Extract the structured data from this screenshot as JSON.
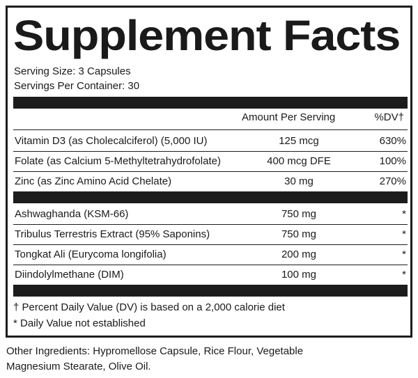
{
  "title": "Supplement Facts",
  "serving_size": "Serving Size: 3 Capsules",
  "servings_per_container": "Servings Per Container: 30",
  "header": {
    "amount": "Amount Per Serving",
    "dv": "%DV†"
  },
  "nutrients": [
    {
      "name": "Vitamin D3 (as Cholecalciferol) (5,000 IU)",
      "amount": "125 mcg",
      "dv": "630%"
    },
    {
      "name": "Folate (as Calcium 5-Methyltetrahydrofolate)",
      "amount": "400 mcg DFE",
      "dv": "100%"
    },
    {
      "name": "Zinc (as Zinc Amino Acid Chelate)",
      "amount": "30 mg",
      "dv": "270%"
    }
  ],
  "botanicals": [
    {
      "name": "Ashwaghanda (KSM-66)",
      "amount": "750 mg",
      "dv": "*"
    },
    {
      "name": "Tribulus Terrestris Extract (95% Saponins)",
      "amount": "750 mg",
      "dv": "*"
    },
    {
      "name": "Tongkat Ali (Eurycoma longifolia)",
      "amount": "200 mg",
      "dv": "*"
    },
    {
      "name": "Diindolylmethane (DIM)",
      "amount": "100 mg",
      "dv": "*"
    }
  ],
  "footnotes": [
    "† Percent Daily Value (DV) is based on a 2,000 calorie diet",
    "* Daily Value not established"
  ],
  "other_ingredients": [
    "Other Ingredients: Hypromellose Capsule, Rice Flour, Vegetable",
    "Magnesium Stearate, Olive Oil."
  ]
}
